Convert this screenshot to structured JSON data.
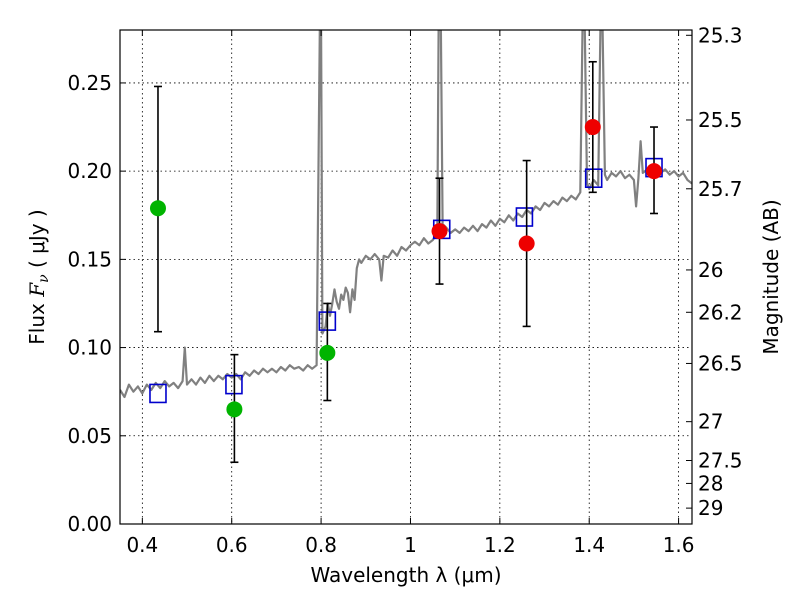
{
  "chart_data": {
    "type": "scatter",
    "xlabel": "Wavelength  λ (μm)",
    "ylabel": "Flux  Fν  ( μJy )",
    "y2label": "Magnitude (AB)",
    "xlim": [
      0.35,
      1.63
    ],
    "ylim": [
      0.0,
      0.28
    ],
    "grid": true,
    "x_ticks": [
      0.4,
      0.6,
      0.8,
      1.0,
      1.2,
      1.4,
      1.6
    ],
    "x_tick_labels": [
      "0.4",
      "0.6",
      "0.8",
      "1",
      "1.2",
      "1.4",
      "1.6"
    ],
    "y_ticks": [
      0.0,
      0.05,
      0.1,
      0.15,
      0.2,
      0.25
    ],
    "y_tick_labels": [
      "0.00",
      "0.05",
      "0.10",
      "0.15",
      "0.20",
      "0.25"
    ],
    "y2_ticks": [
      {
        "label": "25.3",
        "flux": 0.277
      },
      {
        "label": "25.5",
        "flux": 0.229
      },
      {
        "label": "25.7",
        "flux": 0.19
      },
      {
        "label": "26",
        "flux": 0.144
      },
      {
        "label": "26.2",
        "flux": 0.12
      },
      {
        "label": "26.5",
        "flux": 0.091
      },
      {
        "label": "27",
        "flux": 0.058
      },
      {
        "label": "27.5",
        "flux": 0.036
      },
      {
        "label": "28",
        "flux": 0.023
      },
      {
        "label": "29",
        "flux": 0.009
      }
    ],
    "series": [
      {
        "marker": "square-open",
        "color": "#0000cc",
        "points": [
          {
            "x": 0.435,
            "y": 0.074
          },
          {
            "x": 0.605,
            "y": 0.079
          },
          {
            "x": 0.814,
            "y": 0.115
          },
          {
            "x": 1.07,
            "y": 0.167
          },
          {
            "x": 1.255,
            "y": 0.174
          },
          {
            "x": 1.41,
            "y": 0.196
          },
          {
            "x": 1.545,
            "y": 0.202
          }
        ]
      },
      {
        "marker": "circle",
        "color": "#00b400",
        "points": [
          {
            "x": 0.435,
            "y": 0.179,
            "err_low": 0.109,
            "err_high": 0.248
          },
          {
            "x": 0.606,
            "y": 0.065,
            "err_low": 0.035,
            "err_high": 0.096
          },
          {
            "x": 0.814,
            "y": 0.097,
            "err_low": 0.07,
            "err_high": 0.125
          }
        ]
      },
      {
        "marker": "circle",
        "color": "#ee0000",
        "points": [
          {
            "x": 1.065,
            "y": 0.166,
            "err_low": 0.136,
            "err_high": 0.196
          },
          {
            "x": 1.26,
            "y": 0.159,
            "err_low": 0.112,
            "err_high": 0.206
          },
          {
            "x": 1.408,
            "y": 0.225,
            "err_low": 0.188,
            "err_high": 0.262
          },
          {
            "x": 1.545,
            "y": 0.2,
            "err_low": 0.176,
            "err_high": 0.225
          }
        ]
      }
    ],
    "spectrum": {
      "color": "#808080",
      "points": [
        [
          0.35,
          0.076
        ],
        [
          0.36,
          0.072
        ],
        [
          0.37,
          0.079
        ],
        [
          0.38,
          0.075
        ],
        [
          0.39,
          0.078
        ],
        [
          0.4,
          0.074
        ],
        [
          0.41,
          0.079
        ],
        [
          0.42,
          0.076
        ],
        [
          0.43,
          0.08
        ],
        [
          0.44,
          0.077
        ],
        [
          0.45,
          0.081
        ],
        [
          0.46,
          0.078
        ],
        [
          0.47,
          0.08
        ],
        [
          0.48,
          0.077
        ],
        [
          0.49,
          0.081
        ],
        [
          0.495,
          0.1
        ],
        [
          0.5,
          0.079
        ],
        [
          0.51,
          0.082
        ],
        [
          0.52,
          0.079
        ],
        [
          0.53,
          0.083
        ],
        [
          0.54,
          0.08
        ],
        [
          0.55,
          0.084
        ],
        [
          0.56,
          0.081
        ],
        [
          0.57,
          0.084
        ],
        [
          0.58,
          0.082
        ],
        [
          0.59,
          0.085
        ],
        [
          0.6,
          0.083
        ],
        [
          0.61,
          0.085
        ],
        [
          0.62,
          0.082
        ],
        [
          0.63,
          0.086
        ],
        [
          0.64,
          0.084
        ],
        [
          0.65,
          0.087
        ],
        [
          0.66,
          0.085
        ],
        [
          0.67,
          0.088
        ],
        [
          0.68,
          0.086
        ],
        [
          0.69,
          0.088
        ],
        [
          0.7,
          0.086
        ],
        [
          0.71,
          0.089
        ],
        [
          0.72,
          0.087
        ],
        [
          0.73,
          0.09
        ],
        [
          0.74,
          0.088
        ],
        [
          0.75,
          0.089
        ],
        [
          0.76,
          0.087
        ],
        [
          0.77,
          0.09
        ],
        [
          0.78,
          0.088
        ],
        [
          0.79,
          0.09
        ],
        [
          0.797,
          0.28
        ],
        [
          0.8,
          0.28
        ],
        [
          0.803,
          0.108
        ],
        [
          0.81,
          0.112
        ],
        [
          0.815,
          0.125
        ],
        [
          0.82,
          0.118
        ],
        [
          0.825,
          0.125
        ],
        [
          0.83,
          0.133
        ],
        [
          0.835,
          0.126
        ],
        [
          0.84,
          0.122
        ],
        [
          0.845,
          0.13
        ],
        [
          0.85,
          0.127
        ],
        [
          0.855,
          0.134
        ],
        [
          0.86,
          0.131
        ],
        [
          0.865,
          0.12
        ],
        [
          0.87,
          0.133
        ],
        [
          0.875,
          0.127
        ],
        [
          0.88,
          0.145
        ],
        [
          0.885,
          0.15
        ],
        [
          0.89,
          0.148
        ],
        [
          0.9,
          0.152
        ],
        [
          0.91,
          0.15
        ],
        [
          0.92,
          0.153
        ],
        [
          0.93,
          0.15
        ],
        [
          0.935,
          0.138
        ],
        [
          0.94,
          0.152
        ],
        [
          0.95,
          0.151
        ],
        [
          0.96,
          0.155
        ],
        [
          0.97,
          0.152
        ],
        [
          0.98,
          0.157
        ],
        [
          0.99,
          0.155
        ],
        [
          1.0,
          0.158
        ],
        [
          1.01,
          0.16
        ],
        [
          1.02,
          0.158
        ],
        [
          1.03,
          0.162
        ],
        [
          1.04,
          0.159
        ],
        [
          1.05,
          0.161
        ],
        [
          1.06,
          0.165
        ],
        [
          1.063,
          0.28
        ],
        [
          1.068,
          0.28
        ],
        [
          1.072,
          0.17
        ],
        [
          1.08,
          0.168
        ],
        [
          1.09,
          0.165
        ],
        [
          1.1,
          0.167
        ],
        [
          1.11,
          0.165
        ],
        [
          1.12,
          0.168
        ],
        [
          1.13,
          0.166
        ],
        [
          1.14,
          0.169
        ],
        [
          1.15,
          0.166
        ],
        [
          1.16,
          0.17
        ],
        [
          1.17,
          0.168
        ],
        [
          1.18,
          0.172
        ],
        [
          1.19,
          0.169
        ],
        [
          1.2,
          0.173
        ],
        [
          1.21,
          0.171
        ],
        [
          1.22,
          0.175
        ],
        [
          1.23,
          0.172
        ],
        [
          1.24,
          0.176
        ],
        [
          1.25,
          0.174
        ],
        [
          1.26,
          0.178
        ],
        [
          1.27,
          0.176
        ],
        [
          1.28,
          0.18
        ],
        [
          1.29,
          0.178
        ],
        [
          1.3,
          0.182
        ],
        [
          1.31,
          0.18
        ],
        [
          1.32,
          0.183
        ],
        [
          1.33,
          0.181
        ],
        [
          1.34,
          0.185
        ],
        [
          1.35,
          0.183
        ],
        [
          1.36,
          0.186
        ],
        [
          1.37,
          0.184
        ],
        [
          1.38,
          0.188
        ],
        [
          1.385,
          0.28
        ],
        [
          1.39,
          0.28
        ],
        [
          1.395,
          0.193
        ],
        [
          1.4,
          0.19
        ],
        [
          1.41,
          0.195
        ],
        [
          1.42,
          0.192
        ],
        [
          1.425,
          0.28
        ],
        [
          1.43,
          0.28
        ],
        [
          1.435,
          0.198
        ],
        [
          1.44,
          0.195
        ],
        [
          1.45,
          0.199
        ],
        [
          1.46,
          0.197
        ],
        [
          1.47,
          0.2
        ],
        [
          1.48,
          0.196
        ],
        [
          1.49,
          0.198
        ],
        [
          1.5,
          0.195
        ],
        [
          1.505,
          0.18
        ],
        [
          1.51,
          0.196
        ],
        [
          1.515,
          0.217
        ],
        [
          1.52,
          0.199
        ],
        [
          1.53,
          0.201
        ],
        [
          1.54,
          0.2
        ],
        [
          1.55,
          0.203
        ],
        [
          1.56,
          0.199
        ],
        [
          1.57,
          0.201
        ],
        [
          1.58,
          0.198
        ],
        [
          1.59,
          0.2
        ],
        [
          1.6,
          0.197
        ],
        [
          1.61,
          0.199
        ],
        [
          1.62,
          0.195
        ],
        [
          1.63,
          0.193
        ]
      ]
    }
  }
}
